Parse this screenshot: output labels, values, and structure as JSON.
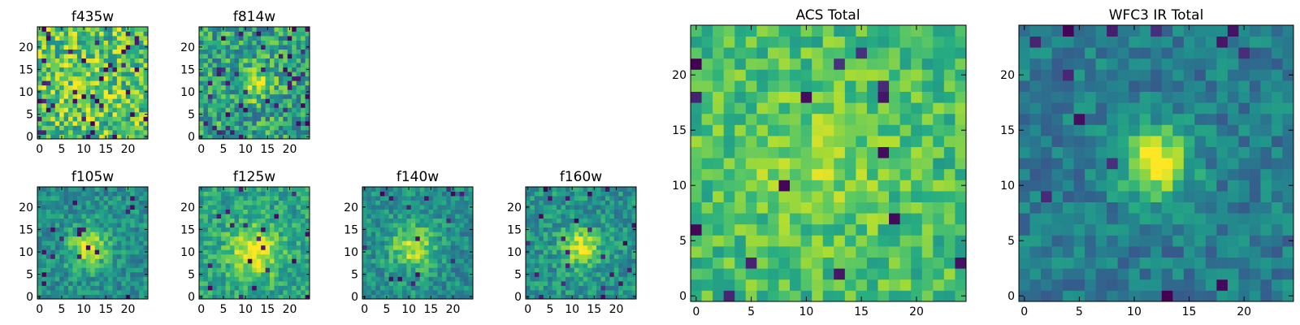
{
  "figure": {
    "background": "#ffffff",
    "colormap": "viridis"
  },
  "chart_data": [
    {
      "type": "heatmap",
      "title": "f435w",
      "xlim": [
        -0.5,
        24.5
      ],
      "ylim": [
        -0.5,
        24.5
      ],
      "xticks": [
        "0",
        "5",
        "10",
        "15",
        "20"
      ],
      "yticks": [
        "0",
        "5",
        "10",
        "15",
        "20"
      ],
      "grid": false,
      "profile": {
        "seed": 11,
        "base": 0.72,
        "noise": 0.55,
        "peak": 0.05,
        "cx": 12,
        "cy": 12,
        "width": 4,
        "dark_rate": 0.06
      }
    },
    {
      "type": "heatmap",
      "title": "f814w",
      "xlim": [
        -0.5,
        24.5
      ],
      "ylim": [
        -0.5,
        24.5
      ],
      "xticks": [
        "0",
        "5",
        "10",
        "15",
        "20"
      ],
      "yticks": [
        "0",
        "5",
        "10",
        "15",
        "20"
      ],
      "grid": false,
      "profile": {
        "seed": 23,
        "base": 0.58,
        "noise": 0.5,
        "peak": 0.35,
        "cx": 12,
        "cy": 12,
        "width": 2.5,
        "dark_rate": 0.06
      }
    },
    {
      "type": "heatmap",
      "title": "f105w",
      "xlim": [
        -0.5,
        24.5
      ],
      "ylim": [
        -0.5,
        24.5
      ],
      "xticks": [
        "0",
        "5",
        "10",
        "15",
        "20"
      ],
      "yticks": [
        "0",
        "5",
        "10",
        "15",
        "20"
      ],
      "grid": false,
      "profile": {
        "seed": 37,
        "base": 0.5,
        "noise": 0.32,
        "peak": 0.45,
        "cx": 11,
        "cy": 11,
        "width": 3,
        "dark_rate": 0.03
      }
    },
    {
      "type": "heatmap",
      "title": "f125w",
      "xlim": [
        -0.5,
        24.5
      ],
      "ylim": [
        -0.5,
        24.5
      ],
      "xticks": [
        "0",
        "5",
        "10",
        "15",
        "20"
      ],
      "yticks": [
        "0",
        "5",
        "10",
        "15",
        "20"
      ],
      "grid": false,
      "profile": {
        "seed": 41,
        "base": 0.58,
        "noise": 0.32,
        "peak": 0.4,
        "cx": 12,
        "cy": 10,
        "width": 4,
        "dark_rate": 0.03
      }
    },
    {
      "type": "heatmap",
      "title": "f140w",
      "xlim": [
        -0.5,
        24.5
      ],
      "ylim": [
        -0.5,
        24.5
      ],
      "xticks": [
        "0",
        "5",
        "10",
        "15",
        "20"
      ],
      "yticks": [
        "0",
        "5",
        "10",
        "15",
        "20"
      ],
      "grid": false,
      "profile": {
        "seed": 53,
        "base": 0.5,
        "noise": 0.32,
        "peak": 0.4,
        "cx": 11,
        "cy": 11,
        "width": 3.5,
        "dark_rate": 0.03
      }
    },
    {
      "type": "heatmap",
      "title": "f160w",
      "xlim": [
        -0.5,
        24.5
      ],
      "ylim": [
        -0.5,
        24.5
      ],
      "xticks": [
        "0",
        "5",
        "10",
        "15",
        "20"
      ],
      "yticks": [
        "0",
        "5",
        "10",
        "15",
        "20"
      ],
      "grid": false,
      "profile": {
        "seed": 67,
        "base": 0.52,
        "noise": 0.32,
        "peak": 0.42,
        "cx": 12,
        "cy": 11,
        "width": 3,
        "dark_rate": 0.03
      }
    },
    {
      "type": "heatmap",
      "title": "ACS Total",
      "xlim": [
        -0.5,
        24.5
      ],
      "ylim": [
        -0.5,
        24.5
      ],
      "xticks": [
        "0",
        "5",
        "10",
        "15",
        "20"
      ],
      "yticks": [
        "0",
        "5",
        "10",
        "15",
        "20"
      ],
      "grid": false,
      "profile": {
        "seed": 79,
        "base": 0.7,
        "noise": 0.32,
        "peak": 0.15,
        "cx": 11,
        "cy": 12,
        "width": 4,
        "dark_rate": 0.03
      }
    },
    {
      "type": "heatmap",
      "title": "WFC3 IR Total",
      "xlim": [
        -0.5,
        24.5
      ],
      "ylim": [
        -0.5,
        24.5
      ],
      "xticks": [
        "0",
        "5",
        "10",
        "15",
        "20"
      ],
      "yticks": [
        "0",
        "5",
        "10",
        "15",
        "20"
      ],
      "grid": false,
      "profile": {
        "seed": 97,
        "base": 0.42,
        "noise": 0.28,
        "peak": 0.6,
        "cx": 12,
        "cy": 12,
        "width": 2.2,
        "dark_rate": 0.02
      }
    }
  ]
}
